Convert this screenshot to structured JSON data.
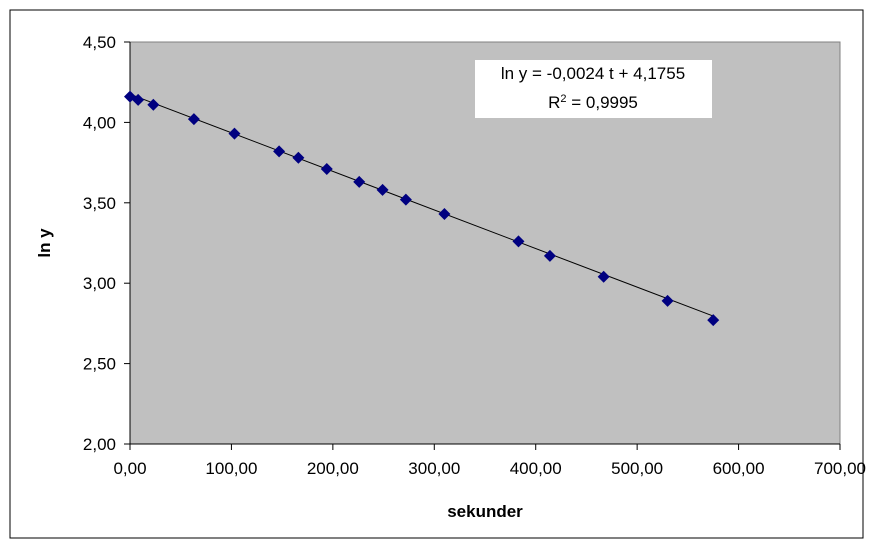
{
  "chart_data": {
    "type": "scatter",
    "title": "",
    "xlabel": "sekunder",
    "ylabel": "ln y",
    "xlim": [
      0,
      700
    ],
    "ylim": [
      2.0,
      4.5
    ],
    "x_ticks": [
      0,
      100,
      200,
      300,
      400,
      500,
      600,
      700
    ],
    "y_ticks": [
      2.0,
      2.5,
      3.0,
      3.5,
      4.0,
      4.5
    ],
    "x_tick_labels": [
      "0,00",
      "100,00",
      "200,00",
      "300,00",
      "400,00",
      "500,00",
      "600,00",
      "700,00"
    ],
    "y_tick_labels": [
      "2,00",
      "2,50",
      "3,00",
      "3,50",
      "4,00",
      "4,50"
    ],
    "plot_background": "#C0C0C0",
    "marker_color": "#000080",
    "marker_shape": "diamond",
    "grid": false,
    "legend": "none",
    "series": [
      {
        "x": [
          0,
          8,
          23,
          63,
          103,
          147,
          166,
          194,
          226,
          249,
          272,
          310,
          383,
          414,
          467,
          530,
          575
        ],
        "y": [
          4.16,
          4.14,
          4.11,
          4.02,
          3.93,
          3.82,
          3.78,
          3.71,
          3.63,
          3.58,
          3.52,
          3.43,
          3.26,
          3.17,
          3.04,
          2.89,
          2.77
        ]
      }
    ],
    "trendline": {
      "type": "linear",
      "slope": -0.0024,
      "intercept": 4.1755,
      "x_range": [
        0,
        575
      ],
      "color": "#000000"
    },
    "annotation": {
      "equation": "ln y = -0,0024 t + 4,1755",
      "r2_prefix": "R",
      "r2_sup": "2",
      "r2_suffix": " = 0,9995"
    }
  }
}
